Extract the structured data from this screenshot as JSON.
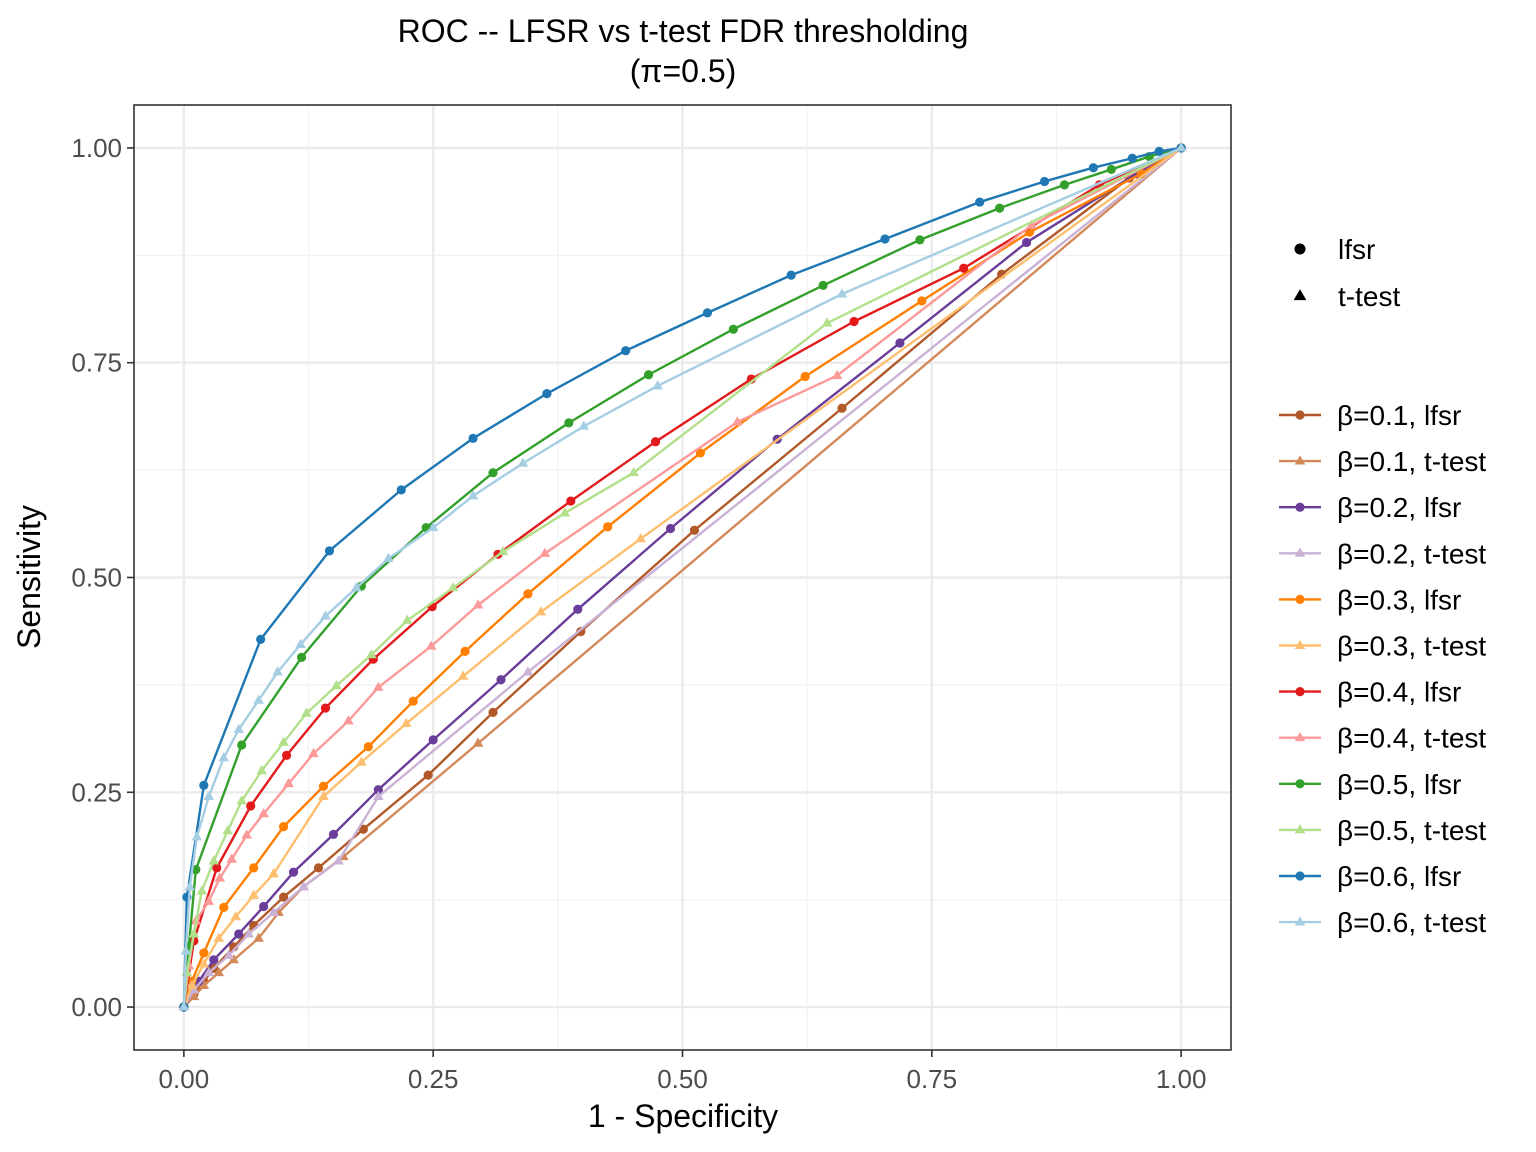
{
  "chart_data": {
    "type": "line",
    "title": "ROC -- LFSR vs t-test FDR thresholding",
    "subtitle": "(π=0.5)",
    "xlabel": "1 - Specificity",
    "ylabel": "Sensitivity",
    "xlim": [
      -0.05,
      1.05
    ],
    "ylim": [
      -0.05,
      1.05
    ],
    "xticks": [
      0,
      0.25,
      0.5,
      0.75,
      1
    ],
    "yticks": [
      0,
      0.25,
      0.5,
      0.75,
      1
    ],
    "xtick_labels": [
      "0.00",
      "0.25",
      "0.50",
      "0.75",
      "1.00"
    ],
    "ytick_labels": [
      "0.00",
      "0.25",
      "0.50",
      "0.75",
      "1.00"
    ],
    "grid": true,
    "legend_position": "right",
    "shape_legend": [
      {
        "label": "lfsr",
        "shape": "circle"
      },
      {
        "label": "t-test",
        "shape": "triangle"
      }
    ],
    "series": [
      {
        "name": "β=0.1, lfsr",
        "color": "#b15928",
        "shape": "circle",
        "x": [
          0,
          0.01,
          0.02,
          0.03,
          0.05,
          0.07,
          0.1,
          0.135,
          0.18,
          0.245,
          0.31,
          0.398,
          0.512,
          0.66,
          0.82,
          0.948,
          1
        ],
        "y": [
          0,
          0.015,
          0.03,
          0.045,
          0.07,
          0.095,
          0.128,
          0.162,
          0.207,
          0.27,
          0.343,
          0.437,
          0.555,
          0.697,
          0.853,
          0.965,
          1
        ]
      },
      {
        "name": "β=0.1, t-test",
        "color": "#d4895a",
        "shape": "triangle",
        "x": [
          0,
          0.01,
          0.02,
          0.035,
          0.05,
          0.075,
          0.095,
          0.12,
          0.16,
          0.295,
          1
        ],
        "y": [
          0,
          0.012,
          0.025,
          0.04,
          0.055,
          0.08,
          0.11,
          0.14,
          0.175,
          0.307,
          1
        ]
      },
      {
        "name": "β=0.2, lfsr",
        "color": "#6a3d9a",
        "shape": "circle",
        "x": [
          0,
          0.015,
          0.03,
          0.055,
          0.08,
          0.11,
          0.15,
          0.195,
          0.25,
          0.318,
          0.395,
          0.488,
          0.595,
          0.718,
          0.845,
          0.955,
          1
        ],
        "y": [
          0,
          0.03,
          0.055,
          0.085,
          0.117,
          0.157,
          0.201,
          0.253,
          0.311,
          0.381,
          0.463,
          0.557,
          0.661,
          0.773,
          0.89,
          0.97,
          1
        ]
      },
      {
        "name": "β=0.2, t-test",
        "color": "#cab2d6",
        "shape": "triangle",
        "x": [
          0,
          0.01,
          0.025,
          0.045,
          0.065,
          0.09,
          0.12,
          0.155,
          0.195,
          0.345,
          1
        ],
        "y": [
          0,
          0.02,
          0.04,
          0.06,
          0.085,
          0.11,
          0.14,
          0.17,
          0.245,
          0.39,
          1
        ]
      },
      {
        "name": "β=0.3, lfsr",
        "color": "#ff7f00",
        "shape": "circle",
        "x": [
          0,
          0.008,
          0.02,
          0.04,
          0.07,
          0.1,
          0.14,
          0.185,
          0.23,
          0.282,
          0.345,
          0.425,
          0.518,
          0.623,
          0.74,
          0.848,
          0.96,
          1
        ],
        "y": [
          0,
          0.03,
          0.063,
          0.116,
          0.162,
          0.21,
          0.257,
          0.303,
          0.356,
          0.414,
          0.481,
          0.559,
          0.645,
          0.734,
          0.822,
          0.902,
          0.97,
          1
        ]
      },
      {
        "name": "β=0.3, t-test",
        "color": "#fdbf6f",
        "shape": "triangle",
        "x": [
          0,
          0.008,
          0.02,
          0.035,
          0.052,
          0.07,
          0.09,
          0.14,
          0.178,
          0.223,
          0.28,
          0.358,
          0.458,
          1
        ],
        "y": [
          0,
          0.025,
          0.05,
          0.08,
          0.105,
          0.13,
          0.155,
          0.245,
          0.285,
          0.33,
          0.385,
          0.46,
          0.545,
          1
        ]
      },
      {
        "name": "β=0.4, lfsr",
        "color": "#e31a1c",
        "shape": "circle",
        "x": [
          0,
          0.01,
          0.033,
          0.067,
          0.103,
          0.142,
          0.19,
          0.249,
          0.315,
          0.388,
          0.473,
          0.569,
          0.672,
          0.782,
          0.918,
          1
        ],
        "y": [
          0,
          0.077,
          0.162,
          0.234,
          0.293,
          0.348,
          0.405,
          0.466,
          0.527,
          0.589,
          0.658,
          0.731,
          0.798,
          0.86,
          0.957,
          1
        ]
      },
      {
        "name": "β=0.4, t-test",
        "color": "#fb9a99",
        "shape": "triangle",
        "x": [
          0,
          0.005,
          0.012,
          0.025,
          0.036,
          0.048,
          0.063,
          0.08,
          0.105,
          0.13,
          0.165,
          0.195,
          0.248,
          0.295,
          0.362,
          0.555,
          0.655,
          0.85,
          1
        ],
        "y": [
          0,
          0.048,
          0.1,
          0.123,
          0.15,
          0.172,
          0.2,
          0.225,
          0.26,
          0.295,
          0.333,
          0.372,
          0.42,
          0.468,
          0.528,
          0.681,
          0.735,
          0.91,
          1
        ]
      },
      {
        "name": "β=0.5, lfsr",
        "color": "#33a02c",
        "shape": "circle",
        "x": [
          0,
          0.005,
          0.012,
          0.058,
          0.118,
          0.178,
          0.243,
          0.31,
          0.386,
          0.466,
          0.551,
          0.641,
          0.738,
          0.818,
          0.883,
          0.93,
          0.968,
          1
        ],
        "y": [
          0,
          0.071,
          0.16,
          0.305,
          0.407,
          0.49,
          0.558,
          0.622,
          0.68,
          0.736,
          0.789,
          0.84,
          0.893,
          0.93,
          0.957,
          0.975,
          0.99,
          1
        ]
      },
      {
        "name": "β=0.5, t-test",
        "color": "#b2df8a",
        "shape": "triangle",
        "x": [
          0,
          0.003,
          0.01,
          0.018,
          0.03,
          0.044,
          0.058,
          0.078,
          0.1,
          0.123,
          0.153,
          0.188,
          0.224,
          0.27,
          0.32,
          0.382,
          0.451,
          0.645,
          1
        ],
        "y": [
          0,
          0.04,
          0.085,
          0.135,
          0.17,
          0.205,
          0.24,
          0.275,
          0.308,
          0.342,
          0.374,
          0.41,
          0.45,
          0.488,
          0.53,
          0.575,
          0.622,
          0.796,
          1
        ]
      },
      {
        "name": "β=0.6, lfsr",
        "color": "#1f78b4",
        "shape": "circle",
        "x": [
          0,
          0.003,
          0.02,
          0.077,
          0.146,
          0.218,
          0.29,
          0.364,
          0.443,
          0.525,
          0.609,
          0.703,
          0.798,
          0.863,
          0.912,
          0.951,
          0.978,
          1
        ],
        "y": [
          0,
          0.128,
          0.258,
          0.428,
          0.531,
          0.602,
          0.662,
          0.714,
          0.764,
          0.808,
          0.852,
          0.894,
          0.937,
          0.961,
          0.977,
          0.988,
          0.996,
          1
        ]
      },
      {
        "name": "β=0.6, t-test",
        "color": "#a6cee3",
        "shape": "triangle",
        "x": [
          0,
          0.002,
          0.006,
          0.013,
          0.025,
          0.04,
          0.055,
          0.075,
          0.094,
          0.117,
          0.142,
          0.173,
          0.205,
          0.25,
          0.29,
          0.34,
          0.401,
          0.475,
          0.66,
          1
        ],
        "y": [
          0,
          0.065,
          0.14,
          0.198,
          0.245,
          0.29,
          0.323,
          0.357,
          0.39,
          0.422,
          0.455,
          0.488,
          0.522,
          0.558,
          0.595,
          0.633,
          0.676,
          0.723,
          0.83,
          1
        ]
      }
    ]
  }
}
